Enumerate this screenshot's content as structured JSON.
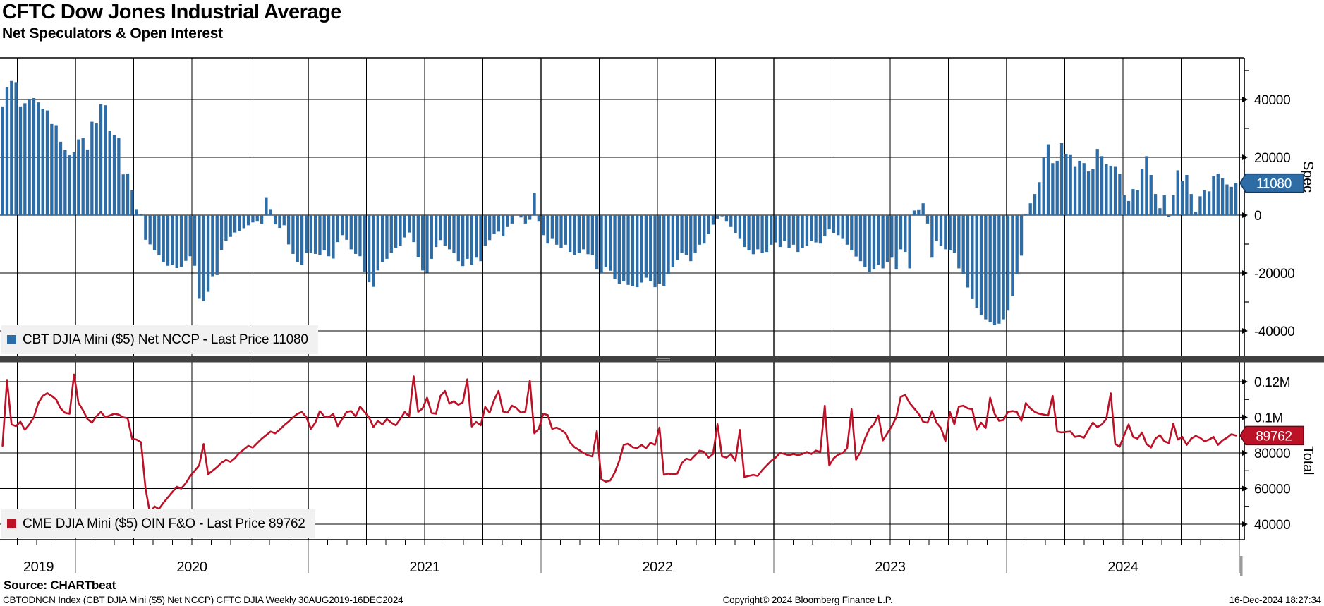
{
  "header": {
    "title": "CFTC Dow Jones Industrial Average",
    "subtitle": "Net Speculators & Open Interest"
  },
  "colors": {
    "bar_blue": "#2e6ca6",
    "bar_blue_dark": "#14395f",
    "line_red": "#bb1228",
    "line_red_dark": "#5f0a16",
    "grid": "#000000",
    "divider": "#414141",
    "legend_bg": "#f1f1f1"
  },
  "panels": {
    "spec": {
      "legend": "CBT DJIA Mini ($5) Net NCCP - Last Price 11080",
      "axis_label": "Spec",
      "last_price_badge": "11080"
    },
    "total": {
      "legend": "CME DJIA Mini ($5) OIN F&O - Last Price 89762",
      "axis_label": "Total",
      "last_price_badge": "89762"
    }
  },
  "x_axis": {
    "years": [
      "2019",
      "2020",
      "2021",
      "2022",
      "2023",
      "2024"
    ]
  },
  "source_line": "Source: CHARTbeat",
  "footer": {
    "left": "CBTODNCN Index (CBT DJIA Mini ($5) Net NCCP) CFTC DJIA  Weekly 30AUG2019-16DEC2024",
    "center": "Copyright© 2024 Bloomberg Finance L.P.",
    "right": "16-Dec-2024 18:27:34"
  },
  "chart_data": [
    {
      "type": "bar",
      "name": "CBT DJIA Mini ($5) Net NCCP",
      "frequency": "weekly",
      "date_range": "30AUG2019-16DEC2024",
      "last_price": 11080,
      "ylim": [
        -48800,
        54400
      ],
      "axis_ticks": [
        {
          "label": "40000",
          "value": 40000
        },
        {
          "label": "20000",
          "value": 20000
        },
        {
          "label": "0",
          "value": 0
        },
        {
          "label": "-20000",
          "value": -20000
        },
        {
          "label": "-40000",
          "value": -40000
        }
      ],
      "minor_ticks": [
        50000,
        30000,
        10000,
        -10000,
        -30000
      ],
      "values": [
        37600,
        44200,
        46400,
        46000,
        37600,
        38700,
        40100,
        40500,
        39000,
        36800,
        36200,
        31500,
        31100,
        25400,
        22500,
        20700,
        21700,
        26200,
        26600,
        22700,
        32300,
        31700,
        38400,
        38000,
        29200,
        27600,
        26600,
        14100,
        14400,
        8700,
        2100,
        500,
        -8500,
        -10100,
        -12200,
        -13800,
        -16200,
        -17500,
        -17100,
        -18300,
        -17900,
        -15800,
        -14200,
        -17500,
        -28900,
        -29700,
        -26500,
        -21100,
        -20700,
        -12000,
        -9000,
        -7500,
        -6000,
        -5500,
        -4500,
        -3500,
        -2500,
        -2000,
        -3000,
        6200,
        2100,
        -3200,
        -4400,
        -3500,
        -10100,
        -13400,
        -16200,
        -17100,
        -13000,
        -13000,
        -13400,
        -13800,
        -12200,
        -14200,
        -15000,
        -9300,
        -6900,
        -8500,
        -11800,
        -13400,
        -14200,
        -19500,
        -23200,
        -24800,
        -19100,
        -16200,
        -15100,
        -13000,
        -11300,
        -10500,
        -7700,
        -6000,
        -9300,
        -14600,
        -19100,
        -19900,
        -15100,
        -11000,
        -8600,
        -10600,
        -11800,
        -13100,
        -15900,
        -17600,
        -15100,
        -17100,
        -14700,
        -15900,
        -10600,
        -8600,
        -6500,
        -5700,
        -7300,
        -4100,
        -2900,
        0,
        -800,
        -2900,
        -1600,
        7800,
        -2000,
        -6900,
        -9800,
        -8200,
        -10200,
        -11400,
        -10200,
        -12700,
        -13900,
        -13100,
        -11800,
        -13500,
        -13900,
        -18800,
        -20000,
        -18000,
        -19200,
        -22000,
        -23700,
        -22900,
        -24100,
        -24500,
        -24900,
        -23300,
        -21600,
        -22900,
        -24900,
        -23700,
        -24500,
        -20400,
        -18000,
        -15500,
        -13100,
        -13900,
        -15900,
        -13100,
        -10200,
        -9800,
        -6500,
        -3300,
        -1200,
        -400,
        -2000,
        -4100,
        -6100,
        -8200,
        -11000,
        -12200,
        -13500,
        -11800,
        -13100,
        -12700,
        -10200,
        -9400,
        -11000,
        -9000,
        -11400,
        -10200,
        -12700,
        -11400,
        -10600,
        -9000,
        -9400,
        -9800,
        -7300,
        -4900,
        -6100,
        -6900,
        -8200,
        -10200,
        -12200,
        -14300,
        -15900,
        -18000,
        -19600,
        -18800,
        -17100,
        -18400,
        -16300,
        -14700,
        -18800,
        -11800,
        -12700,
        -18400,
        1600,
        2000,
        4100,
        -2900,
        -14700,
        -9000,
        -10600,
        -11800,
        -12200,
        -13100,
        -18400,
        -20400,
        -25000,
        -29000,
        -32000,
        -34500,
        -36000,
        -37000,
        -38000,
        -37500,
        -36000,
        -33000,
        -28000,
        -20500,
        -14000,
        500,
        4100,
        7300,
        11400,
        20000,
        24500,
        18000,
        18800,
        24900,
        21200,
        20800,
        16700,
        18800,
        18000,
        15100,
        15900,
        22900,
        20400,
        17600,
        17100,
        16700,
        14300,
        6900,
        4900,
        9000,
        8600,
        15900,
        20400,
        13900,
        7300,
        2400,
        6900,
        -700,
        6900,
        15500,
        11800,
        13900,
        7300,
        1200,
        6500,
        8600,
        8200,
        13500,
        14300,
        12700,
        10600,
        9800,
        11080
      ]
    },
    {
      "type": "line",
      "name": "CME DJIA Mini ($5) OIN F&O",
      "frequency": "weekly",
      "date_range": "30AUG2019-16DEC2024",
      "last_price": 89762,
      "ylim": [
        31300,
        130700
      ],
      "axis_ticks": [
        {
          "label": "0.12M",
          "value": 120000
        },
        {
          "label": "0.1M",
          "value": 100000
        },
        {
          "label": "80000",
          "value": 80000
        },
        {
          "label": "60000",
          "value": 60000
        },
        {
          "label": "40000",
          "value": 40000
        }
      ],
      "minor_ticks": [
        110000,
        90000,
        70000,
        50000
      ],
      "values": [
        84000,
        121000,
        96000,
        95000,
        97500,
        93000,
        96000,
        100000,
        108000,
        112000,
        113500,
        112000,
        110000,
        105000,
        102500,
        102000,
        124000,
        108000,
        104000,
        99000,
        97000,
        100500,
        103000,
        100000,
        101000,
        102000,
        101500,
        100000,
        99500,
        88000,
        87500,
        86000,
        60000,
        46000,
        50000,
        48500,
        52000,
        55000,
        58000,
        61000,
        60000,
        63000,
        67000,
        70000,
        73000,
        85000,
        68000,
        70000,
        72000,
        74500,
        76000,
        75000,
        77000,
        80000,
        82000,
        84000,
        83000,
        85500,
        88000,
        90000,
        92000,
        91000,
        93000,
        95500,
        97500,
        100000,
        102000,
        103000,
        100000,
        93500,
        97000,
        103500,
        100500,
        100000,
        102000,
        95000,
        99000,
        103000,
        103500,
        100500,
        106000,
        103000,
        100000,
        94500,
        98000,
        96000,
        99000,
        97000,
        95500,
        99000,
        103000,
        100500,
        123000,
        103000,
        105000,
        111000,
        102500,
        102000,
        112000,
        114800,
        107700,
        109000,
        107000,
        108400,
        121300,
        94800,
        97400,
        95500,
        105800,
        102600,
        109700,
        114800,
        103200,
        102600,
        106500,
        105200,
        102600,
        103200,
        120600,
        91000,
        93500,
        102000,
        101300,
        93500,
        94200,
        92900,
        91000,
        85800,
        83200,
        81700,
        80000,
        78700,
        78000,
        92200,
        65200,
        63900,
        64500,
        69000,
        75500,
        84500,
        85200,
        83200,
        82600,
        84500,
        82600,
        85800,
        84500,
        94200,
        67700,
        68400,
        68000,
        68400,
        74200,
        76800,
        76100,
        78700,
        81300,
        80600,
        77400,
        79400,
        96100,
        78100,
        77400,
        79400,
        75500,
        92900,
        66500,
        67100,
        67700,
        67100,
        70300,
        72900,
        75500,
        77400,
        80000,
        79400,
        78700,
        79400,
        78700,
        79400,
        80600,
        79400,
        81300,
        80600,
        106400,
        72900,
        77000,
        79000,
        80000,
        82600,
        104500,
        76200,
        80600,
        88000,
        93500,
        96100,
        101000,
        87000,
        91000,
        95000,
        100000,
        111500,
        112500,
        108000,
        105000,
        102000,
        97500,
        97000,
        103500,
        97000,
        94000,
        86500,
        103000,
        96000,
        106000,
        106500,
        105000,
        104500,
        93000,
        97000,
        94000,
        111000,
        102000,
        98000,
        98500,
        103000,
        103500,
        103000,
        98000,
        108000,
        105000,
        103000,
        102000,
        101500,
        101000,
        112000,
        92000,
        91500,
        91800,
        92000,
        89000,
        89500,
        88500,
        93000,
        97000,
        94500,
        96000,
        99000,
        113500,
        85000,
        83500,
        90000,
        96000,
        89000,
        88000,
        91500,
        85000,
        83000,
        88000,
        90000,
        86500,
        85500,
        96500,
        87500,
        89000,
        84500,
        88000,
        89500,
        88500,
        86500,
        87500,
        89000,
        84500,
        87000,
        88500,
        90500,
        89762
      ]
    }
  ]
}
